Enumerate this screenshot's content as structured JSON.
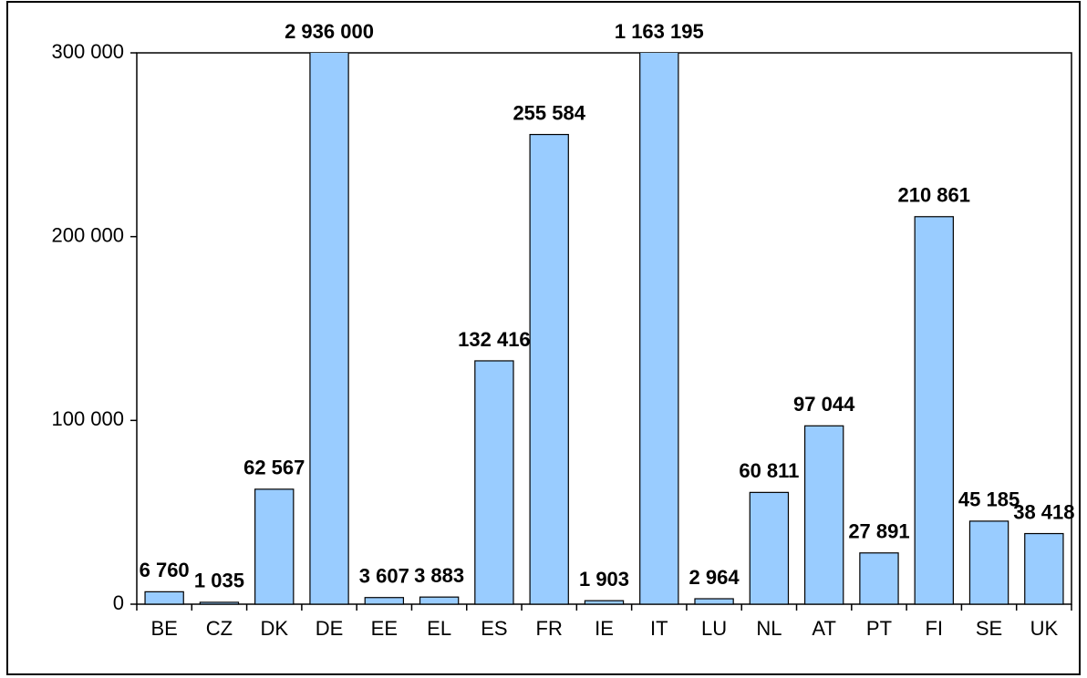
{
  "chart_data": {
    "type": "bar",
    "categories": [
      "BE",
      "CZ",
      "DK",
      "DE",
      "EE",
      "EL",
      "ES",
      "FR",
      "IE",
      "IT",
      "LU",
      "NL",
      "AT",
      "PT",
      "FI",
      "SE",
      "UK"
    ],
    "values": [
      6760,
      1035,
      62567,
      2936000,
      3607,
      3883,
      132416,
      255584,
      1903,
      1163195,
      2964,
      60811,
      97044,
      27891,
      210861,
      45185,
      38418
    ],
    "value_labels": [
      "6 760",
      "1 035",
      "62 567",
      "2 936 000",
      "3 607",
      "3 883",
      "132 416",
      "255 584",
      "1 903",
      "1 163 195",
      "2 964",
      "60 811",
      "97 044",
      "27 891",
      "210 861",
      "45 185",
      "38 418"
    ],
    "color": "#99ccff",
    "ylim": [
      0,
      300000
    ],
    "yticks": [
      0,
      {
        "value": 100000,
        "label": "100 000"
      },
      {
        "value": 200000,
        "label": "200 000"
      },
      {
        "value": 300000,
        "label": "300 000"
      }
    ]
  }
}
